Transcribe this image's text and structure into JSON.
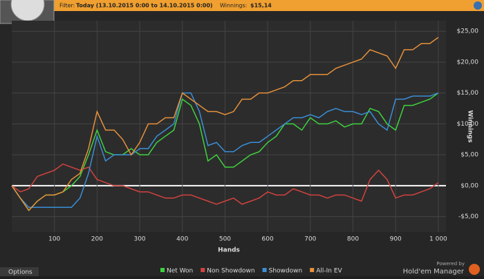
{
  "header": {
    "filter_label": "Filter:",
    "filter_value": "Today (13.10.2015 0:00 to 14.10.2015 0:00)",
    "winnings_label": "Winnings:",
    "winnings_value": "$15,14"
  },
  "footer": {
    "options": "Options",
    "powered_by": "Powered by",
    "product": "Hold'em Manager"
  },
  "chart_data": {
    "type": "line",
    "x_label": "Hands",
    "y_label": "Winnings",
    "x": [
      0,
      20,
      40,
      60,
      80,
      100,
      120,
      140,
      160,
      180,
      200,
      220,
      240,
      260,
      280,
      300,
      320,
      340,
      360,
      380,
      400,
      420,
      440,
      460,
      480,
      500,
      520,
      540,
      560,
      580,
      600,
      620,
      640,
      660,
      680,
      700,
      720,
      740,
      760,
      780,
      800,
      820,
      840,
      860,
      880,
      900,
      920,
      940,
      960,
      980,
      1000
    ],
    "series": [
      {
        "name": "Net Won",
        "color": "#3fd33f",
        "values": [
          0,
          -2,
          -4,
          -2.5,
          -1.5,
          -1.5,
          -1,
          0,
          1.5,
          5,
          9,
          5.5,
          5,
          5,
          6,
          5,
          5,
          7,
          8,
          9,
          14,
          13,
          10,
          4,
          5,
          3,
          3,
          4,
          5,
          5.5,
          7,
          8,
          10,
          10,
          9,
          11,
          10,
          10,
          10.5,
          9.5,
          10,
          10,
          12.5,
          12,
          10,
          9,
          13,
          13,
          13.5,
          14,
          15
        ]
      },
      {
        "name": "Non Showdown",
        "color": "#d4433f",
        "values": [
          0,
          -1,
          -0.5,
          1.5,
          2,
          2.5,
          3.5,
          3,
          2.5,
          3,
          1,
          0.5,
          0,
          0,
          -0.5,
          -1,
          -1,
          -1.5,
          -2,
          -2,
          -1.5,
          -1.5,
          -2,
          -2.5,
          -3,
          -2.5,
          -2,
          -3,
          -2.5,
          -2,
          -1,
          -1.5,
          -1.5,
          -0.5,
          -1,
          -1.5,
          -1.5,
          -2,
          -1.5,
          -1.5,
          -2,
          -2.5,
          1,
          2.5,
          1,
          -2,
          -1.5,
          -1.5,
          -1,
          -0.5,
          0.5
        ]
      },
      {
        "name": "Showdown",
        "color": "#3a8fd8",
        "values": [
          0,
          -2,
          -3.5,
          -3.5,
          -3.5,
          -3.5,
          -3.5,
          -3.5,
          -2,
          2,
          8,
          4,
          5,
          5,
          5,
          6,
          6,
          8,
          9,
          10,
          15,
          15,
          12,
          6.5,
          7,
          5.5,
          5.5,
          6.5,
          7,
          7,
          8,
          9,
          10,
          11,
          11,
          11.5,
          11,
          12,
          12.5,
          12,
          12,
          11.5,
          12,
          10,
          9,
          14,
          14,
          14.5,
          14.5,
          14.5,
          15
        ]
      },
      {
        "name": "All-In EV",
        "color": "#e8923a",
        "values": [
          0,
          -2,
          -4,
          -2.5,
          -1.5,
          -1.5,
          -1,
          1,
          2,
          6,
          12,
          9,
          9,
          7.5,
          5,
          7,
          10,
          10,
          11,
          11,
          15,
          14,
          13,
          12,
          12,
          11.5,
          12,
          14,
          14,
          15,
          15,
          15.5,
          16,
          17,
          17,
          18,
          18,
          18,
          19,
          19.5,
          20,
          20.5,
          22,
          21.5,
          21,
          19,
          22,
          22,
          23,
          23,
          24
        ]
      }
    ],
    "xlim": [
      0,
      1018
    ],
    "ylim": [
      -7.5,
      26.7
    ],
    "xticks": [
      100,
      200,
      300,
      400,
      500,
      600,
      700,
      800,
      900,
      {
        "value": 1000,
        "label": "1 000"
      }
    ],
    "yticks": [
      {
        "value": -5,
        "label": "-$5,00"
      },
      {
        "value": 0,
        "label": "$0,00"
      },
      {
        "value": 5,
        "label": "$5,00"
      },
      {
        "value": 10,
        "label": "$10,00"
      },
      {
        "value": 15,
        "label": "$15,00"
      },
      {
        "value": 20,
        "label": "$20,00"
      },
      {
        "value": 25,
        "label": "$25,00"
      }
    ],
    "grid": true,
    "legend": "bottom"
  }
}
